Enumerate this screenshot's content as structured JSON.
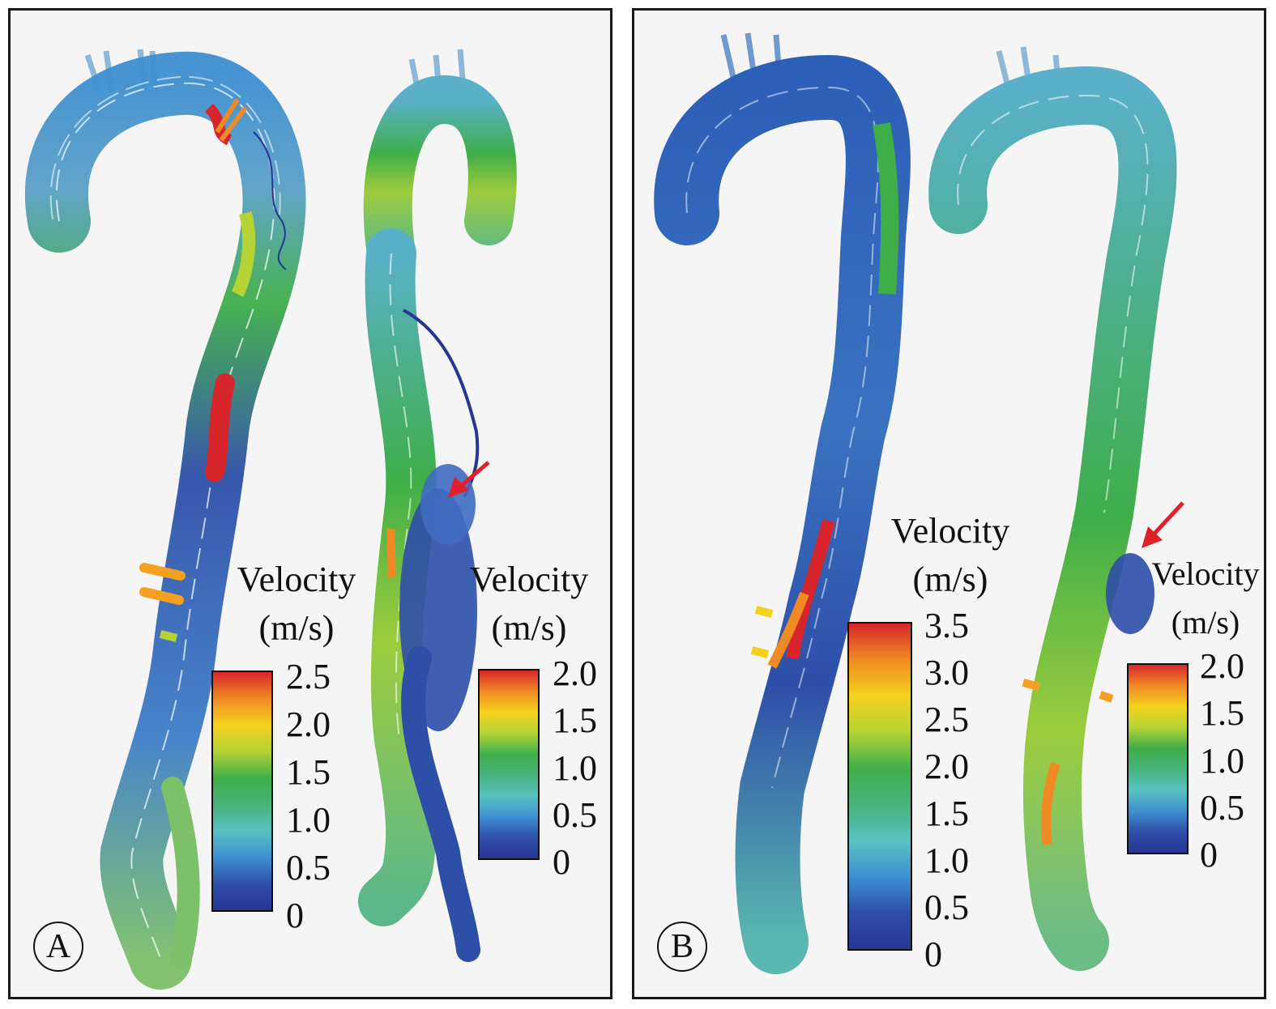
{
  "panels": [
    {
      "letter": "A",
      "colorbars": [
        {
          "title_line1": "Velocity",
          "title_line2": "(m/s)",
          "ticks": [
            "2.5",
            "2.0",
            "1.5",
            "1.0",
            "0.5",
            "0"
          ]
        },
        {
          "title_line1": "Velocity",
          "title_line2": "(m/s)",
          "ticks": [
            "2.0",
            "1.5",
            "1.0",
            "0.5",
            "0"
          ]
        }
      ]
    },
    {
      "letter": "B",
      "colorbars": [
        {
          "title_line1": "Velocity",
          "title_line2": "(m/s)",
          "ticks": [
            "3.5",
            "3.0",
            "2.5",
            "2.0",
            "1.5",
            "1.0",
            "0.5",
            "0"
          ]
        },
        {
          "title_line1": "Velocity",
          "title_line2": "(m/s)",
          "ticks": [
            "2.0",
            "1.5",
            "1.0",
            "0.5",
            "0"
          ]
        }
      ]
    }
  ],
  "colormap": [
    "#d7262b",
    "#f08a24",
    "#f4d21c",
    "#b5d334",
    "#3fae49",
    "#47b27a",
    "#58c2c0",
    "#3f8fd0",
    "#2e4fa8",
    "#283593"
  ],
  "arrow_color": "#e0202a"
}
